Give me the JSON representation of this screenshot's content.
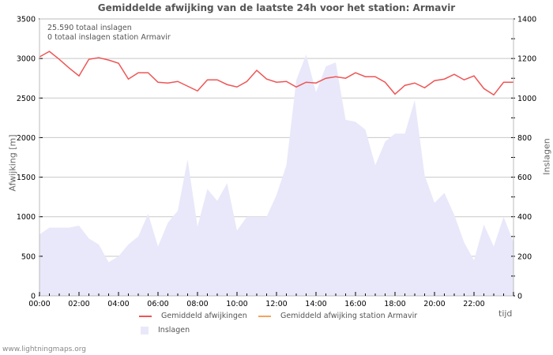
{
  "title": "Gemiddelde afwijking van de laatste 24h voor het station: Armavir",
  "info": {
    "line1": "25.590 totaal inslagen",
    "line2": "0 totaal inslagen station Armavir"
  },
  "axes": {
    "left_label": "Afwijking  [m]",
    "right_label": "Inslagen",
    "x_label": "tijd"
  },
  "legend": {
    "item1": "Gemiddeld afwijkingen",
    "item2": "Gemiddeld afwijking station Armavir",
    "item3": "Inslagen"
  },
  "footer": "www.lightningmaps.org",
  "colors": {
    "line_all": "#ee5555",
    "line_station": "#f4a460",
    "area": "#e8e8fa",
    "grid": "#c8c8c8",
    "axis": "#bbbbbb"
  },
  "chart_data": {
    "type": "line",
    "title": "Gemiddelde afwijking van de laatste 24h voor het station: Armavir",
    "xlabel": "tijd",
    "ylabel": "Afwijking  [m]",
    "y2label": "Inslagen",
    "ylim": [
      0,
      3500
    ],
    "y2lim": [
      0,
      1400
    ],
    "grid": true,
    "legend_position": "bottom",
    "x_tick_labels": [
      "00:00",
      "02:00",
      "04:00",
      "06:00",
      "08:00",
      "10:00",
      "12:00",
      "14:00",
      "16:00",
      "18:00",
      "20:00",
      "22:00"
    ],
    "y_ticks": [
      0,
      500,
      1000,
      1500,
      2000,
      2500,
      3000,
      3500
    ],
    "y2_ticks": [
      0,
      200,
      400,
      600,
      800,
      1000,
      1200,
      1400
    ],
    "x": [
      "00:00",
      "00:30",
      "01:00",
      "01:30",
      "02:00",
      "02:30",
      "03:00",
      "03:30",
      "04:00",
      "04:30",
      "05:00",
      "05:30",
      "06:00",
      "06:30",
      "07:00",
      "07:30",
      "08:00",
      "08:30",
      "09:00",
      "09:30",
      "10:00",
      "10:30",
      "11:00",
      "11:30",
      "12:00",
      "12:30",
      "13:00",
      "13:30",
      "14:00",
      "14:30",
      "15:00",
      "15:30",
      "16:00",
      "16:30",
      "17:00",
      "17:30",
      "18:00",
      "18:30",
      "19:00",
      "19:30",
      "20:00",
      "20:30",
      "21:00",
      "21:30",
      "22:00",
      "22:30",
      "23:00",
      "23:30",
      "24:00"
    ],
    "series": [
      {
        "name": "Gemiddeld afwijkingen",
        "type": "line",
        "axis": "left",
        "color": "#ee5555",
        "values": [
          3020,
          3090,
          2990,
          2880,
          2780,
          2990,
          3010,
          2980,
          2940,
          2740,
          2820,
          2820,
          2700,
          2690,
          2710,
          2650,
          2590,
          2730,
          2730,
          2670,
          2640,
          2710,
          2850,
          2740,
          2700,
          2710,
          2640,
          2700,
          2690,
          2750,
          2770,
          2750,
          2820,
          2770,
          2770,
          2700,
          2550,
          2660,
          2690,
          2630,
          2720,
          2740,
          2800,
          2730,
          2780,
          2620,
          2540,
          2700,
          2700
        ]
      },
      {
        "name": "Gemiddeld afwijking station Armavir",
        "type": "line",
        "axis": "left",
        "color": "#f4a460",
        "values": []
      },
      {
        "name": "Inslagen",
        "type": "area",
        "axis": "right",
        "color": "#e8e8fa",
        "values": [
          310,
          345,
          345,
          345,
          355,
          290,
          260,
          170,
          200,
          260,
          300,
          415,
          250,
          370,
          430,
          690,
          350,
          540,
          480,
          570,
          330,
          400,
          400,
          400,
          510,
          660,
          1090,
          1220,
          1030,
          1160,
          1180,
          890,
          880,
          840,
          660,
          780,
          820,
          820,
          990,
          610,
          470,
          520,
          410,
          270,
          180,
          360,
          250,
          400,
          270
        ]
      }
    ]
  }
}
